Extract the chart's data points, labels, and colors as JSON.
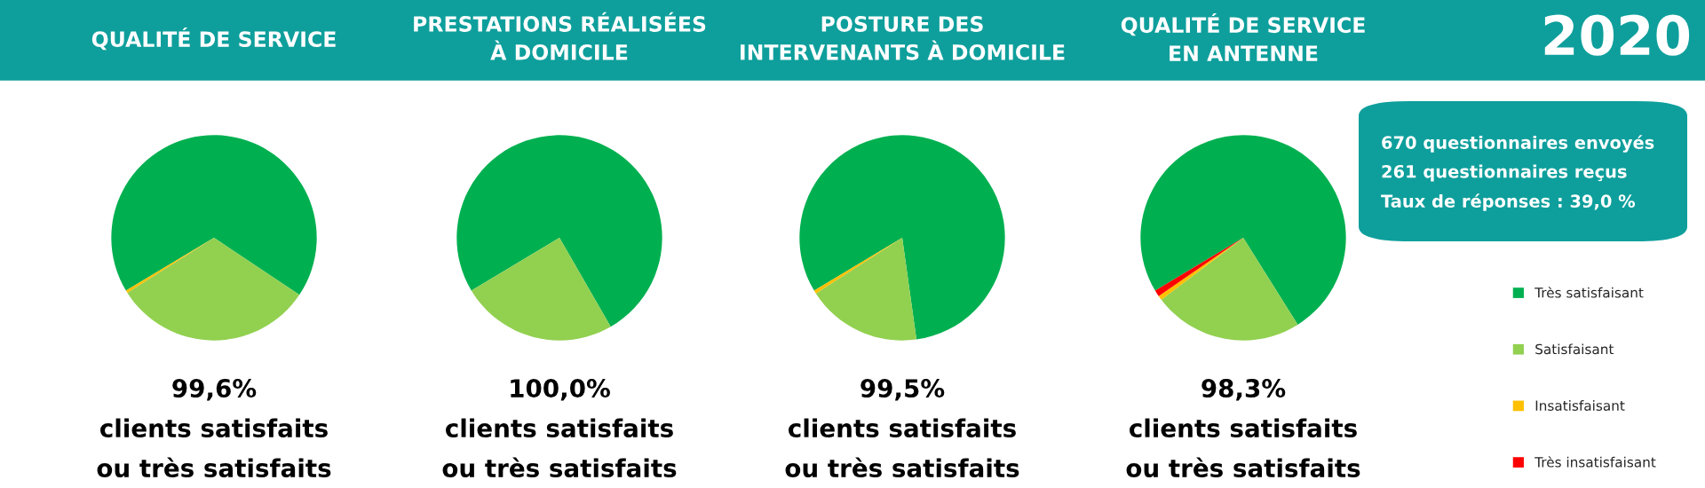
{
  "chart_data": [
    {
      "type": "pie",
      "title": "QUALITÉ DE SERVICE",
      "categories": [
        "Très satisfaisant",
        "Satisfaisant",
        "Insatisfaisant",
        "Très insatisfaisant"
      ],
      "values": [
        68.0,
        31.6,
        0.4,
        0
      ],
      "colors": [
        "#00b050",
        "#92d050",
        "#ffc000",
        "#ff0000"
      ],
      "annotations": [
        "99,6%",
        "clients satisfaits",
        "ou très satisfaits"
      ],
      "legend": "right"
    },
    {
      "type": "pie",
      "title": "PRESTATIONS RÉALISÉES\nÀ DOMICILE",
      "values": [
        75.3,
        24.7,
        0,
        0
      ],
      "colors": [
        "#00b050",
        "#92d050",
        "#ffc000",
        "#ff0000"
      ],
      "annotations": [
        "100,0%",
        "clients satisfaits",
        "ou très satisfaits"
      ]
    },
    {
      "type": "pie",
      "title": "POSTURE DES\nINTERVENANTS À DOMICILE",
      "values": [
        81.4,
        18.1,
        0.5,
        0
      ],
      "colors": [
        "#00b050",
        "#92d050",
        "#ffc000",
        "#ff0000"
      ],
      "annotations": [
        "99,5%",
        "clients satisfaits",
        "ou très satisfaits"
      ]
    },
    {
      "type": "pie",
      "title": "QUALITÉ DE SERVICE\nEN ANTENNE",
      "values": [
        74.7,
        23.6,
        0.7,
        1.0
      ],
      "colors": [
        "#00b050",
        "#92d050",
        "#ffc000",
        "#ff0000"
      ],
      "annotations": [
        "98,3%",
        "clients satisfaits",
        "ou très satisfaits"
      ]
    },
    {
      "type": "other",
      "title": "2020",
      "annotations": [
        "670 questionnaires envoyés",
        "261 questionnaires reçus",
        "Taux de réponses : 39,0 %"
      ]
    }
  ]
}
